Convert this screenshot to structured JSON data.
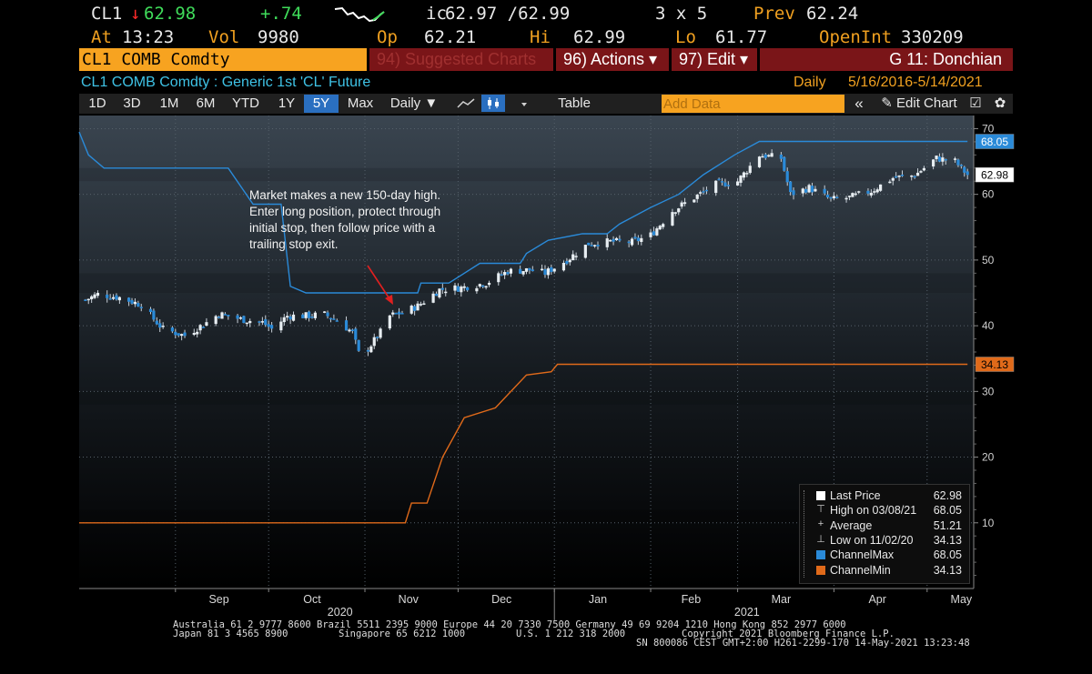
{
  "quote": {
    "ticker": "CL1",
    "arrow": "↓",
    "last": "62.98",
    "change": "+.74",
    "ic_label": "ic",
    "bid_ask": "62.97 /62.99",
    "size": "3 x 5",
    "prev_label": "Prev",
    "prev": "62.24",
    "at_label": "At",
    "time": "13:23",
    "vol_label": "Vol",
    "vol": "9980",
    "op_label": "Op",
    "op": "62.21",
    "hi_label": "Hi",
    "hi": "62.99",
    "lo_label": "Lo",
    "lo": "61.77",
    "oi_label": "OpenInt",
    "oi": "330209"
  },
  "menubar": {
    "security": "CL1 COMB Comdty",
    "suggested": "94) Suggested Charts",
    "actions": "96) Actions ▾",
    "edit": "97) Edit ▾",
    "chart_name": "G 11: Donchian"
  },
  "subtitle": {
    "description": "CL1 COMB Comdty : Generic 1st 'CL' Future",
    "periodicity": "Daily",
    "range": "5/16/2016-5/14/2021"
  },
  "toolbar": {
    "periods": [
      "1D",
      "3D",
      "1M",
      "6M",
      "YTD",
      "1Y",
      "5Y",
      "Max"
    ],
    "selected": "5Y",
    "freq": "Daily ▼",
    "table": "Table",
    "add_data_placeholder": "Add Data",
    "collapse": "«",
    "edit_chart": "✎ Edit Chart",
    "save_icon": "☑",
    "settings_icon": "✿"
  },
  "annotation": {
    "lines": [
      "Market makes a new 150-day high.",
      "Enter long position, protect through",
      "initial stop, then follow price with a",
      "trailing stop exit."
    ]
  },
  "legend": [
    {
      "label": "Last Price",
      "value": "62.98",
      "color": "#ffffff",
      "icon": "square"
    },
    {
      "label": "High on 03/08/21",
      "value": "68.05",
      "color": "#cccccc",
      "icon": "high-marker"
    },
    {
      "label": "Average",
      "value": "51.21",
      "color": "#cccccc",
      "icon": "average-marker"
    },
    {
      "label": "Low on 11/02/20",
      "value": "34.13",
      "color": "#cccccc",
      "icon": "low-marker"
    },
    {
      "label": "ChannelMax",
      "value": "68.05",
      "color": "#2a8ad8",
      "icon": "square"
    },
    {
      "label": "ChannelMin",
      "value": "34.13",
      "color": "#e06a1a",
      "icon": "square"
    }
  ],
  "chart_data": {
    "type": "line",
    "ylim": [
      0,
      72
    ],
    "yticks": [
      10,
      20,
      30,
      40,
      50,
      60,
      70
    ],
    "x_labels": [
      "Sep",
      "Oct",
      "Nov",
      "Dec",
      "Jan",
      "Feb",
      "Mar",
      "Apr",
      "May"
    ],
    "year_labels": [
      "2020",
      "2021"
    ],
    "price_tag": "62.98",
    "max_tag": "68.05",
    "min_tag": "34.13",
    "channel_max": {
      "name": "ChannelMax",
      "color": "#2a8ad8",
      "points": [
        [
          "2020-08-01",
          69.5
        ],
        [
          "2020-08-04",
          66
        ],
        [
          "2020-08-09",
          64
        ],
        [
          "2020-08-15",
          64
        ],
        [
          "2020-09-18",
          64
        ],
        [
          "2020-09-26",
          58.5
        ],
        [
          "2020-10-05",
          58.5
        ],
        [
          "2020-10-08",
          46
        ],
        [
          "2020-10-13",
          45
        ],
        [
          "2020-11-18",
          45
        ],
        [
          "2020-11-19",
          46.5
        ],
        [
          "2020-11-28",
          46.5
        ],
        [
          "2020-12-08",
          49.5
        ],
        [
          "2020-12-21",
          49.5
        ],
        [
          "2020-12-23",
          51
        ],
        [
          "2020-12-30",
          53
        ],
        [
          "2021-01-10",
          54
        ],
        [
          "2021-01-18",
          54
        ],
        [
          "2021-01-22",
          55.5
        ],
        [
          "2021-02-01",
          58
        ],
        [
          "2021-02-10",
          60
        ],
        [
          "2021-02-18",
          63
        ],
        [
          "2021-02-28",
          66
        ],
        [
          "2021-03-08",
          68.05
        ],
        [
          "2021-05-14",
          68.05
        ]
      ]
    },
    "channel_min": {
      "name": "ChannelMin",
      "color": "#e06a1a",
      "points": [
        [
          "2020-08-01",
          10
        ],
        [
          "2020-11-14",
          10
        ],
        [
          "2020-11-16",
          13
        ],
        [
          "2020-11-21",
          13
        ],
        [
          "2020-11-26",
          20
        ],
        [
          "2020-12-03",
          26
        ],
        [
          "2020-12-13",
          27.5
        ],
        [
          "2020-12-23",
          32.5
        ],
        [
          "2020-12-31",
          33
        ],
        [
          "2021-01-02",
          34.13
        ],
        [
          "2021-05-14",
          34.13
        ]
      ]
    },
    "price": {
      "name": "Last Price",
      "points": [
        [
          "2020-08-01",
          43.5
        ],
        [
          "2020-08-07",
          44.8
        ],
        [
          "2020-08-14",
          44.3
        ],
        [
          "2020-08-21",
          43.2
        ],
        [
          "2020-08-25",
          41
        ],
        [
          "2020-08-28",
          39.5
        ],
        [
          "2020-09-04",
          38.5
        ],
        [
          "2020-09-11",
          40.5
        ],
        [
          "2020-09-15",
          41.8
        ],
        [
          "2020-09-22",
          41
        ],
        [
          "2020-09-29",
          40.5
        ],
        [
          "2020-10-02",
          39.5
        ],
        [
          "2020-10-07",
          41.5
        ],
        [
          "2020-10-13",
          41.5
        ],
        [
          "2020-10-19",
          41.7
        ],
        [
          "2020-10-23",
          40.8
        ],
        [
          "2020-10-28",
          39
        ],
        [
          "2020-10-30",
          35.8
        ],
        [
          "2020-11-02",
          36.5
        ],
        [
          "2020-11-06",
          39
        ],
        [
          "2020-11-09",
          41.5
        ],
        [
          "2020-11-13",
          42
        ],
        [
          "2020-11-18",
          43
        ],
        [
          "2020-11-25",
          45.5
        ],
        [
          "2020-12-02",
          45.8
        ],
        [
          "2020-12-10",
          46.5
        ],
        [
          "2020-12-17",
          48.3
        ],
        [
          "2020-12-24",
          48.5
        ],
        [
          "2020-12-29",
          48
        ],
        [
          "2021-01-05",
          50
        ],
        [
          "2021-01-12",
          52.5
        ],
        [
          "2021-01-19",
          52.8
        ],
        [
          "2021-01-26",
          52.7
        ],
        [
          "2021-02-01",
          53.8
        ],
        [
          "2021-02-08",
          57.5
        ],
        [
          "2021-02-15",
          59.5
        ],
        [
          "2021-02-22",
          61.5
        ],
        [
          "2021-03-01",
          62
        ],
        [
          "2021-03-08",
          66
        ],
        [
          "2021-03-15",
          65.5
        ],
        [
          "2021-03-18",
          60
        ],
        [
          "2021-03-24",
          61
        ],
        [
          "2021-03-31",
          59.2
        ],
        [
          "2021-04-06",
          59.5
        ],
        [
          "2021-04-13",
          60.5
        ],
        [
          "2021-04-20",
          62.5
        ],
        [
          "2021-04-27",
          62.9
        ],
        [
          "2021-05-04",
          65.5
        ],
        [
          "2021-05-10",
          65
        ],
        [
          "2021-05-14",
          62.98
        ]
      ]
    }
  },
  "footer": {
    "line1": "Australia 61 2 9777 8600 Brazil 5511 2395 9000 Europe 44 20 7330 7500 Germany 49 69 9204 1210 Hong Kong 852 2977 6000",
    "line2a": "Japan 81 3 4565 8900",
    "line2b": "Singapore 65 6212 1000",
    "line2c": "U.S. 1 212 318 2000",
    "line2d": "Copyright 2021 Bloomberg Finance L.P.",
    "line3": "SN 800086 CEST GMT+2:00 H261-2299-170 14-May-2021 13:23:48"
  }
}
